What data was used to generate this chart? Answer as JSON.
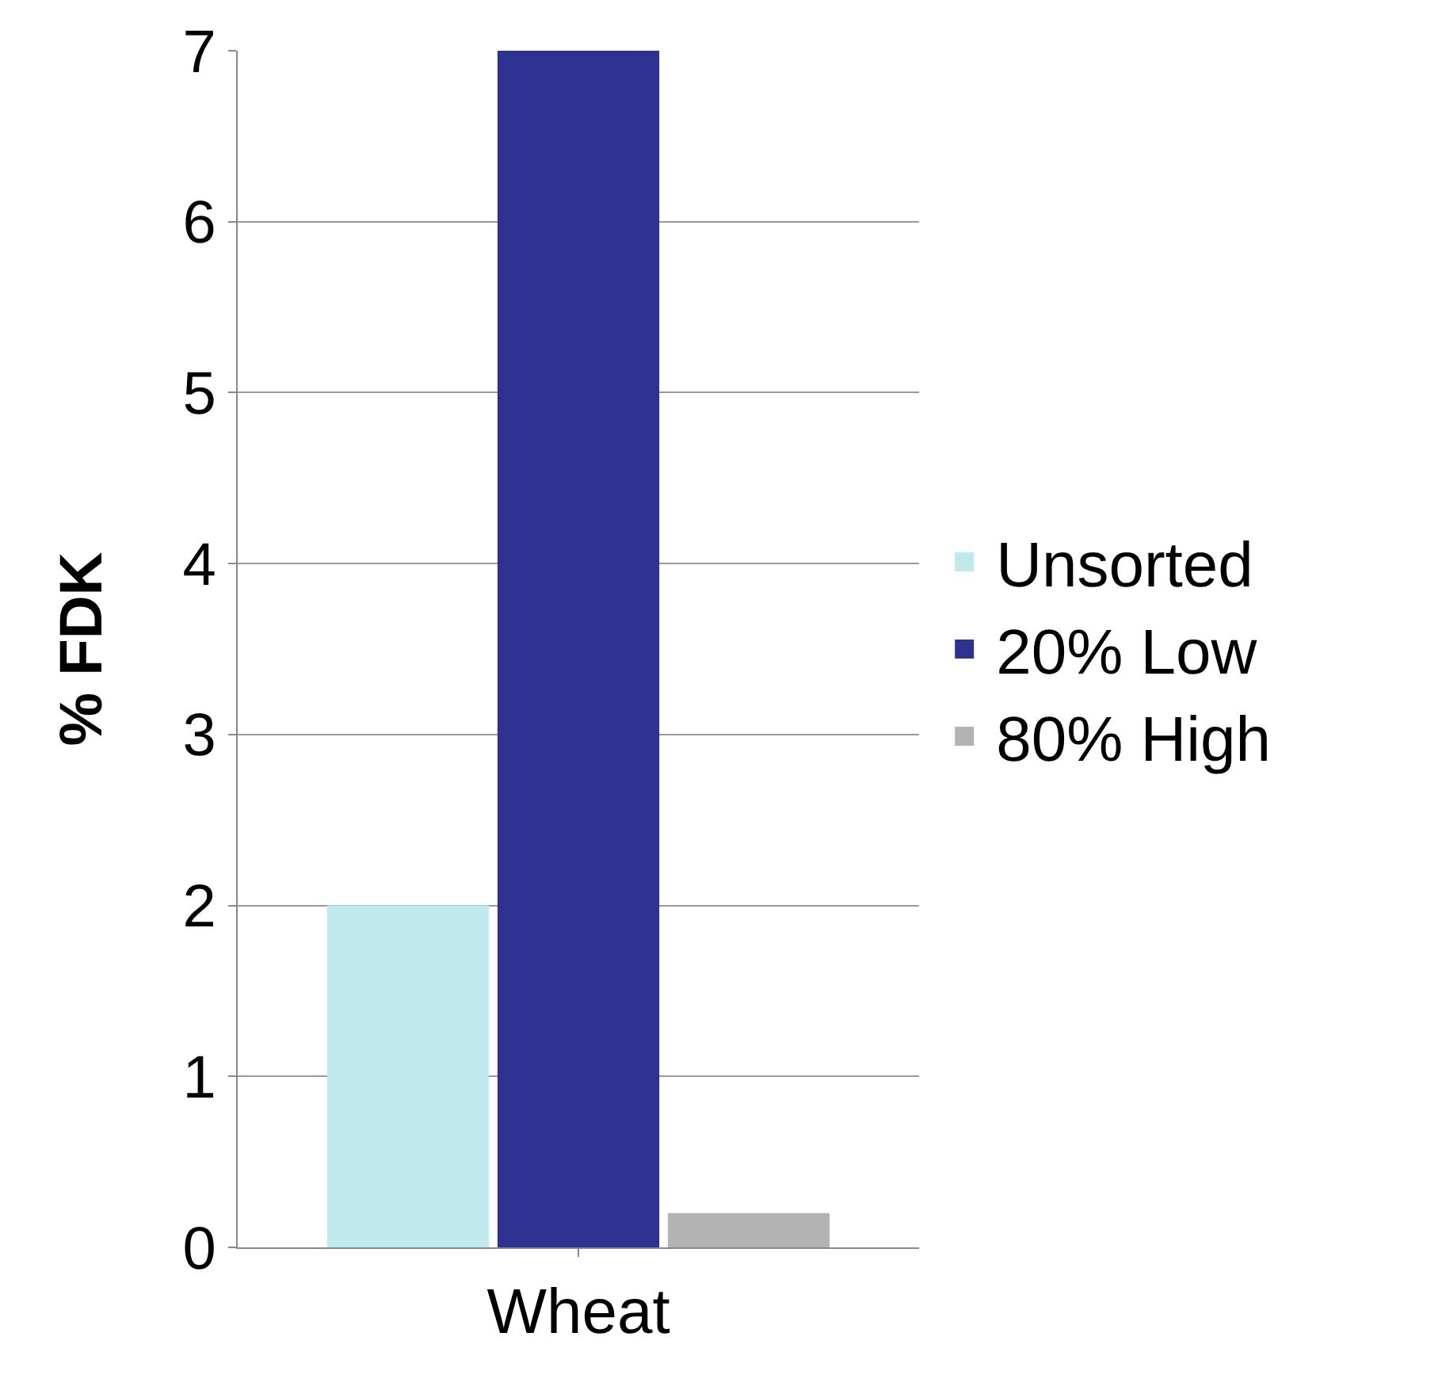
{
  "chart_data": {
    "type": "bar",
    "ylabel": "% FDK",
    "categories": [
      "Wheat"
    ],
    "series": [
      {
        "name": "Unsorted",
        "color": "#bfe9ec",
        "values": [
          2.0
        ]
      },
      {
        "name": "20% Low",
        "color": "#2e3192",
        "values": [
          7.0
        ]
      },
      {
        "name": "80% High",
        "color": "#b3b3b3",
        "values": [
          0.2
        ]
      }
    ],
    "ylim": [
      0,
      7
    ],
    "yticks": [
      0,
      1,
      2,
      3,
      4,
      5,
      6,
      7
    ],
    "grid": "y",
    "legend": "right"
  }
}
